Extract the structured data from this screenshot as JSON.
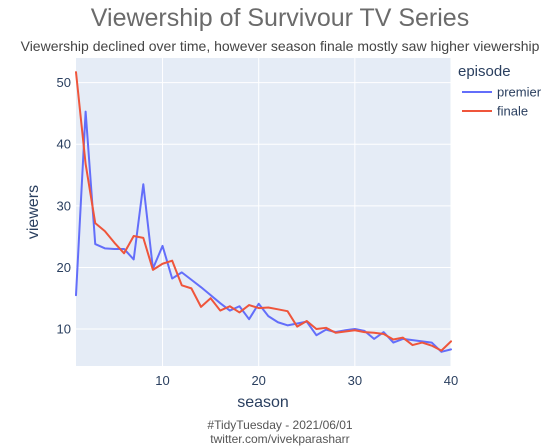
{
  "header": {
    "title": "Viewership of Survivour TV Series",
    "subtitle": "Viewership declined over time, however season finale mostly saw higher viewership"
  },
  "footer": {
    "caption_line1": "#TidyTuesday - 2021/06/01",
    "caption_line2": "twitter.com/vivekparasharr"
  },
  "chart_data": {
    "type": "line",
    "xlabel": "season",
    "ylabel": "viewers",
    "xlim": [
      1,
      40
    ],
    "ylim": [
      4,
      54
    ],
    "xticks": [
      10,
      20,
      30,
      40
    ],
    "yticks": [
      10,
      20,
      30,
      40,
      50
    ],
    "grid": true,
    "legend": {
      "title": "episode",
      "placement": "top-right (outside plot)"
    },
    "x": [
      1,
      2,
      3,
      4,
      5,
      6,
      7,
      8,
      9,
      10,
      11,
      12,
      13,
      14,
      15,
      16,
      17,
      18,
      19,
      20,
      21,
      22,
      23,
      24,
      25,
      26,
      27,
      28,
      29,
      30,
      31,
      32,
      33,
      34,
      35,
      36,
      37,
      38,
      39,
      40
    ],
    "series": [
      {
        "name": "premier",
        "color": "#636efa",
        "values": [
          15.5,
          45.3,
          23.8,
          23.1,
          23.0,
          23.0,
          21.3,
          33.5,
          19.8,
          23.5,
          18.2,
          19.2,
          18.0,
          16.8,
          15.5,
          14.2,
          13.0,
          13.7,
          11.6,
          14.1,
          12.1,
          11.1,
          10.6,
          10.9,
          11.2,
          9.0,
          9.9,
          9.5,
          9.8,
          10.0,
          9.7,
          8.4,
          9.5,
          7.8,
          8.4,
          8.2,
          8.0,
          7.8,
          6.3,
          6.7
        ]
      },
      {
        "name": "finale",
        "color": "#ef553b",
        "values": [
          51.7,
          36.8,
          27.2,
          25.9,
          24.0,
          22.3,
          25.1,
          24.8,
          19.6,
          20.6,
          21.1,
          17.1,
          16.6,
          13.6,
          15.0,
          13.0,
          13.7,
          12.7,
          13.9,
          13.4,
          13.5,
          13.2,
          12.9,
          10.4,
          11.3,
          10.0,
          10.2,
          9.4,
          9.6,
          9.8,
          9.5,
          9.4,
          9.2,
          8.3,
          8.6,
          7.4,
          7.8,
          7.3,
          6.5,
          8.0
        ]
      }
    ]
  }
}
